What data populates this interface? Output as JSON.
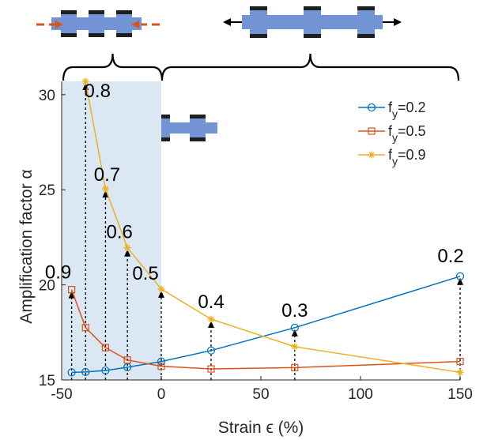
{
  "chart_data": {
    "type": "line",
    "xlabel": "Strain ϵ (%)",
    "ylabel": "Amplification factor α",
    "xlim": [
      -50,
      150
    ],
    "ylim": [
      15,
      30.7
    ],
    "x_ticks": [
      -50,
      0,
      50,
      100,
      150
    ],
    "y_ticks": [
      15,
      20,
      25,
      30
    ],
    "grid": false,
    "legend_position": "top-right",
    "shaded_region": {
      "x": [
        -50,
        0
      ],
      "color": "#dbe7f3"
    },
    "series": [
      {
        "name": "f_y=0.2",
        "name_base": "f",
        "name_sub": "y",
        "name_rest": "=0.2",
        "color": "#0072bd",
        "marker": "circle",
        "x": [
          -45,
          -38,
          -28,
          -17,
          0,
          25,
          67,
          150
        ],
        "y": [
          15.4,
          15.42,
          15.5,
          15.67,
          15.97,
          16.55,
          17.75,
          20.45
        ]
      },
      {
        "name": "f_y=0.5",
        "name_base": "f",
        "name_sub": "y",
        "name_rest": "=0.5",
        "color": "#d95319",
        "marker": "square",
        "x": [
          -45,
          -38,
          -28,
          -17,
          0,
          25,
          67,
          150
        ],
        "y": [
          19.75,
          17.75,
          16.7,
          16.05,
          15.72,
          15.58,
          15.65,
          15.97
        ]
      },
      {
        "name": "f_y=0.9",
        "name_base": "f",
        "name_sub": "y",
        "name_rest": "=0.9",
        "color": "#edb120",
        "marker": "star",
        "x": [
          -38,
          -28,
          -17,
          0,
          25,
          67,
          150
        ],
        "y": [
          30.7,
          25.05,
          21.95,
          19.78,
          18.2,
          16.75,
          15.4
        ]
      }
    ],
    "annotations": [
      {
        "label": "0.9",
        "x": -45,
        "y": 19.75
      },
      {
        "label": "0.8",
        "x": -38,
        "y": 30.7
      },
      {
        "label": "0.7",
        "x": -28,
        "y": 25.05
      },
      {
        "label": "0.6",
        "x": -17,
        "y": 21.95
      },
      {
        "label": "0.5",
        "x": 0,
        "y": 19.78
      },
      {
        "label": "0.4",
        "x": 25,
        "y": 18.2
      },
      {
        "label": "0.3",
        "x": 67,
        "y": 17.75
      },
      {
        "label": "0.2",
        "x": 150,
        "y": 20.45
      }
    ],
    "schematic_colors": {
      "bar": "#7294d4",
      "block": "#1e1e1e",
      "compress_arrow": "#d95319",
      "stretch_arrow": "#000000"
    }
  }
}
